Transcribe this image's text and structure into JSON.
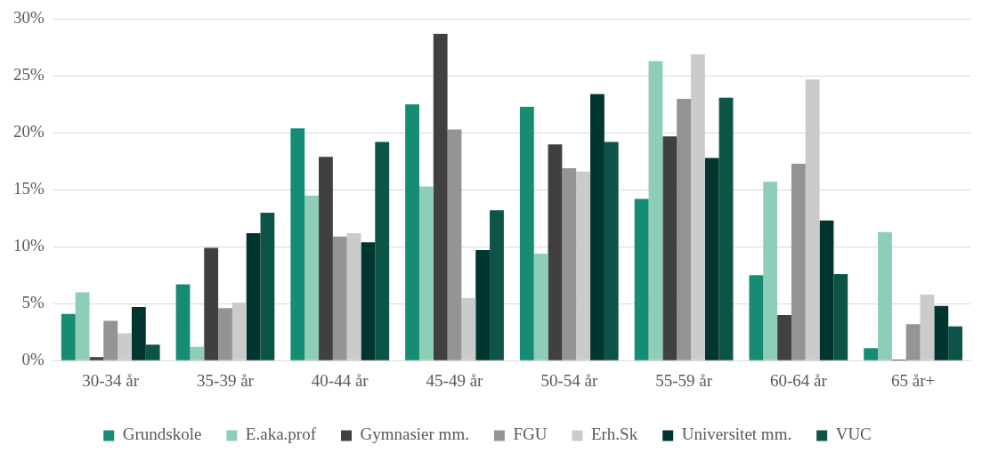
{
  "chart_data": {
    "type": "bar",
    "categories": [
      "30-34 år",
      "35-39 år",
      "40-44 år",
      "45-49 år",
      "50-54 år",
      "55-59 år",
      "60-64 år",
      "65 år+"
    ],
    "series": [
      {
        "name": "Grundskole",
        "color": "#168c74",
        "values": [
          4.1,
          6.7,
          20.4,
          22.5,
          22.3,
          14.2,
          7.5,
          1.1
        ]
      },
      {
        "name": "E.aka.prof",
        "color": "#8ecdb8",
        "values": [
          6.0,
          1.2,
          14.5,
          15.3,
          9.4,
          26.3,
          15.7,
          11.3
        ]
      },
      {
        "name": "Gymnasier mm.",
        "color": "#404040",
        "values": [
          0.3,
          9.9,
          17.9,
          28.7,
          19.0,
          19.7,
          4.0,
          0.1
        ]
      },
      {
        "name": "FGU",
        "color": "#949494",
        "values": [
          3.5,
          4.6,
          10.9,
          20.3,
          16.9,
          23.0,
          17.3,
          3.2
        ]
      },
      {
        "name": "Erh.Sk",
        "color": "#cbcbcb",
        "values": [
          2.4,
          5.1,
          11.2,
          5.5,
          16.6,
          26.9,
          24.7,
          5.8
        ]
      },
      {
        "name": "Universitet mm.",
        "color": "#003530",
        "values": [
          4.7,
          11.2,
          10.4,
          9.7,
          23.4,
          17.8,
          12.3,
          4.8
        ]
      },
      {
        "name": "VUC",
        "color": "#0c5448",
        "values": [
          1.4,
          13.0,
          19.2,
          13.2,
          19.2,
          23.1,
          7.6,
          3.0
        ]
      }
    ],
    "ylim": [
      0,
      30
    ],
    "yticks": [
      {
        "value": 0,
        "label": "0%"
      },
      {
        "value": 5,
        "label": "5%"
      },
      {
        "value": 10,
        "label": "10%"
      },
      {
        "value": 15,
        "label": "15%"
      },
      {
        "value": 20,
        "label": "20%"
      },
      {
        "value": 25,
        "label": "25%"
      },
      {
        "value": 30,
        "label": "30%"
      }
    ],
    "grid": "y",
    "legend": "bottom"
  }
}
